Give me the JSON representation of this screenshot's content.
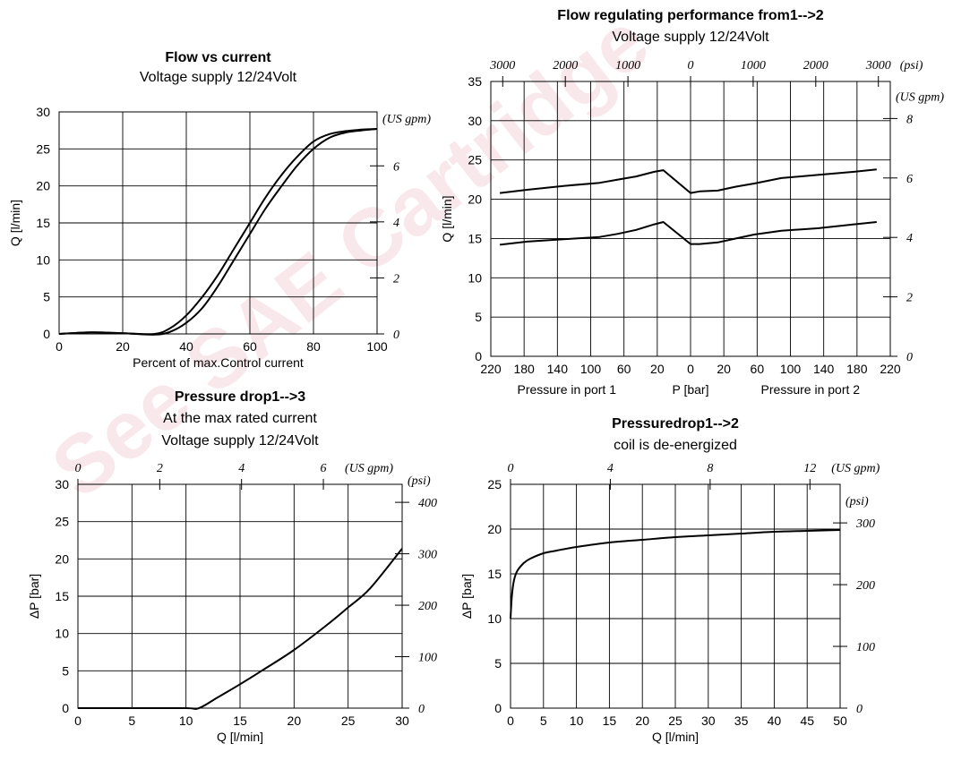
{
  "watermark": {
    "text": "See SAE Cartridge",
    "color": "#c8102e"
  },
  "chart_data": [
    {
      "id": "flow-vs-current",
      "type": "line",
      "title": "Flow vs current",
      "subtitle": "Voltage supply 12/24Volt",
      "xlabel": "Percent of max.Control current",
      "ylabel": "Q [l/min]",
      "xlim": [
        0,
        100
      ],
      "ylim": [
        0,
        30
      ],
      "xticks": [
        "0",
        "20",
        "40",
        "60",
        "80",
        "100"
      ],
      "yticks": [
        "0",
        "5",
        "10",
        "15",
        "20",
        "25",
        "30"
      ],
      "secondary_y": {
        "unit": "(US gpm)",
        "ticks": [
          "0",
          "2",
          "4",
          "6"
        ]
      },
      "grid": true,
      "series": [
        {
          "values_x": [
            0,
            10,
            20,
            30,
            35,
            40,
            45,
            50,
            55,
            60,
            65,
            70,
            75,
            80,
            85,
            90,
            95,
            100
          ],
          "values_y": [
            0,
            0.2,
            0.1,
            0.0,
            0.8,
            2.5,
            5.0,
            8.0,
            11.5,
            15.0,
            18.5,
            21.5,
            24.0,
            26.0,
            27.0,
            27.4,
            27.6,
            27.7
          ]
        },
        {
          "values_x": [
            0,
            10,
            20,
            30,
            35,
            40,
            45,
            50,
            55,
            60,
            65,
            70,
            75,
            80,
            85,
            90,
            95,
            100
          ],
          "values_y": [
            0,
            0.2,
            0.1,
            -0.1,
            0.3,
            1.5,
            3.5,
            6.5,
            10.0,
            13.5,
            17.0,
            20.0,
            22.8,
            25.0,
            26.5,
            27.2,
            27.5,
            27.7
          ]
        }
      ]
    },
    {
      "id": "flow-regulating",
      "type": "line",
      "title": "Flow regulating performance from1-->2",
      "subtitle": "Voltage supply 12/24Volt",
      "xlabel_left": "Pressure in port 1",
      "xlabel_center": "P [bar]",
      "xlabel_right": "Pressure in port 2",
      "ylabel": "Q [l/min]",
      "xlim": [
        -220,
        220
      ],
      "ylim": [
        0,
        35
      ],
      "xticks": [
        "220",
        "180",
        "140",
        "100",
        "60",
        "20",
        "0",
        "20",
        "60",
        "100",
        "140",
        "180",
        "220"
      ],
      "yticks": [
        "0",
        "5",
        "10",
        "15",
        "20",
        "25",
        "30",
        "35"
      ],
      "top_axis": {
        "unit": "(psi)",
        "ticks": [
          "3000",
          "2000",
          "1000",
          "0",
          "1000",
          "2000",
          "3000"
        ]
      },
      "secondary_y": {
        "unit": "(US gpm)",
        "ticks": [
          "0",
          "2",
          "4",
          "6",
          "8"
        ]
      },
      "grid": true,
      "series": [
        {
          "values_x": [
            -210,
            -180,
            -140,
            -100,
            -80,
            -60,
            -40,
            -30,
            0,
            10,
            30,
            50,
            70,
            100,
            140,
            180,
            205
          ],
          "values_y": [
            20.8,
            21.2,
            21.7,
            22.1,
            22.5,
            22.9,
            23.5,
            23.7,
            20.8,
            21.0,
            21.1,
            21.6,
            22.0,
            22.7,
            23.1,
            23.5,
            23.8
          ]
        },
        {
          "values_x": [
            -210,
            -180,
            -140,
            -100,
            -80,
            -60,
            -40,
            -30,
            0,
            10,
            30,
            50,
            70,
            100,
            140,
            180,
            205
          ],
          "values_y": [
            14.2,
            14.6,
            14.9,
            15.2,
            15.6,
            16.1,
            16.8,
            17.1,
            14.3,
            14.3,
            14.5,
            15.0,
            15.5,
            16.0,
            16.3,
            16.8,
            17.1
          ]
        }
      ]
    },
    {
      "id": "pressure-drop-1-3",
      "type": "line",
      "title": "Pressure drop1-->3",
      "subtitle": "At the max rated current",
      "subtitle2": "Voltage supply 12/24Volt",
      "xlabel": "Q [l/min]",
      "ylabel": "ΔP [bar]",
      "xlim": [
        0,
        30
      ],
      "ylim": [
        0,
        30
      ],
      "xticks": [
        "0",
        "5",
        "10",
        "15",
        "20",
        "25",
        "30"
      ],
      "yticks": [
        "0",
        "5",
        "10",
        "15",
        "20",
        "25",
        "30"
      ],
      "top_axis": {
        "unit": "(US gpm)",
        "ticks": [
          "0",
          "2",
          "4",
          "6"
        ]
      },
      "secondary_y": {
        "unit": "(psi)",
        "ticks": [
          "0",
          "100",
          "200",
          "300",
          "400"
        ]
      },
      "grid": true,
      "series": [
        {
          "values_x": [
            0,
            5,
            10,
            11.2,
            13,
            15,
            17,
            20,
            23,
            25,
            27,
            30
          ],
          "values_y": [
            0,
            0,
            0,
            0,
            1.5,
            3.2,
            5.0,
            7.8,
            11.1,
            13.5,
            16.0,
            21.4
          ]
        }
      ]
    },
    {
      "id": "pressure-drop-1-2",
      "type": "line",
      "title": "Pressuredrop1-->2",
      "subtitle": "coil is de-energized",
      "xlabel": "Q [l/min]",
      "ylabel": "ΔP [bar]",
      "xlim": [
        0,
        50
      ],
      "ylim": [
        0,
        25
      ],
      "xticks": [
        "0",
        "5",
        "10",
        "15",
        "20",
        "25",
        "30",
        "35",
        "40",
        "45",
        "50"
      ],
      "yticks": [
        "0",
        "5",
        "10",
        "15",
        "20",
        "25"
      ],
      "top_axis": {
        "unit": "(US gpm)",
        "ticks": [
          "0",
          "4",
          "8",
          "12"
        ]
      },
      "secondary_y": {
        "unit": "(psi)",
        "ticks": [
          "0",
          "100",
          "200",
          "300"
        ]
      },
      "grid": true,
      "series": [
        {
          "values_x": [
            0,
            0.2,
            0.5,
            1,
            2,
            3,
            5,
            7,
            10,
            15,
            20,
            25,
            30,
            35,
            40,
            45,
            50
          ],
          "values_y": [
            10.0,
            12.5,
            14.2,
            15.3,
            16.2,
            16.7,
            17.3,
            17.6,
            18.0,
            18.5,
            18.8,
            19.1,
            19.3,
            19.5,
            19.7,
            19.8,
            19.9
          ]
        }
      ]
    }
  ]
}
